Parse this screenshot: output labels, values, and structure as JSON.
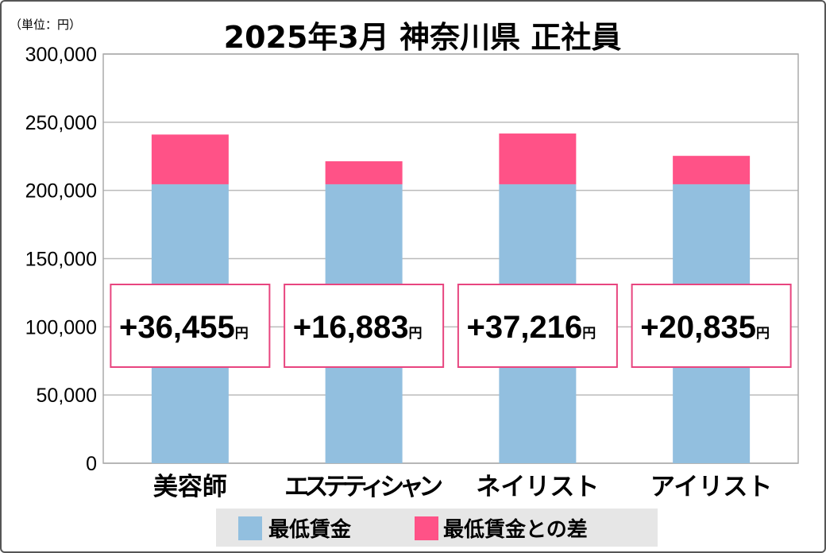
{
  "chart_data": {
    "type": "bar",
    "stacked": true,
    "title": "2025年3月 神奈川県 正社員",
    "unit_label": "（単位：円）",
    "categories": [
      "美容師",
      "エステティシャン",
      "ネイリスト",
      "アイリスト"
    ],
    "series": [
      {
        "name": "最低賃金",
        "color": "#92bfdf",
        "values": [
          204512,
          204512,
          204512,
          204512
        ]
      },
      {
        "name": "最低賃金との差",
        "color": "#ff5287",
        "values": [
          36455,
          16883,
          37216,
          20835
        ]
      }
    ],
    "data_labels": [
      "+36,455",
      "+16,883",
      "+37,216",
      "+20,835"
    ],
    "data_label_suffix": "円",
    "ylim": [
      0,
      300000
    ],
    "yticks": [
      0,
      50000,
      100000,
      150000,
      200000,
      250000,
      300000
    ],
    "ytick_labels": [
      "0",
      "50,000",
      "100,000",
      "150,000",
      "200,000",
      "250,000",
      "300,000"
    ],
    "grid": true,
    "legend_position": "bottom",
    "label_box_color": "#e8457f"
  }
}
